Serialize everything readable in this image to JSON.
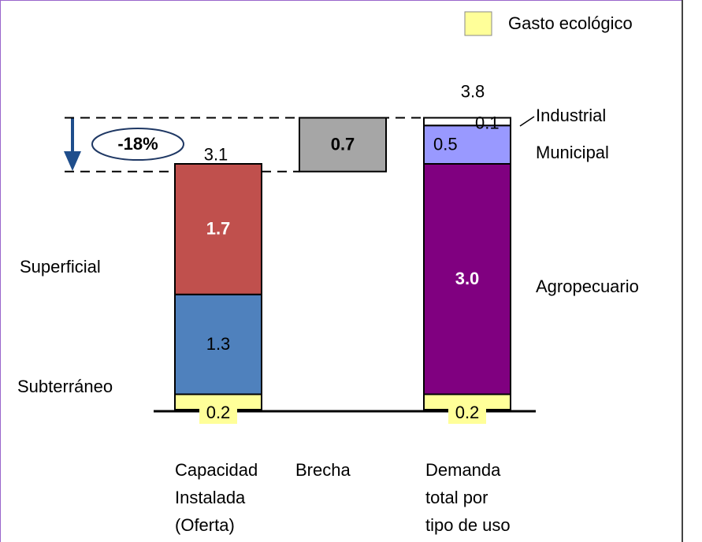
{
  "chart_data": {
    "type": "stacked_bar",
    "categories": [
      "Capacidad\nInstalada\n(Oferta)",
      "Brecha",
      "Demanda\ntotal por\ntipo de uso"
    ],
    "series": [
      {
        "name": "Gasto ecológico",
        "color": "#ffff99",
        "values": [
          0.2,
          null,
          0.2
        ],
        "value_labels": [
          "0.2",
          null,
          "0.2"
        ]
      },
      {
        "name": "Subterráneo",
        "color": "#4f81bd",
        "values": [
          1.3,
          null,
          null
        ],
        "value_labels": [
          "1.3",
          null,
          null
        ]
      },
      {
        "name": "Superficial",
        "color": "#c0504d",
        "values": [
          1.7,
          null,
          null
        ],
        "value_labels": [
          "1.7",
          null,
          null
        ]
      },
      {
        "name": "Agropecuario",
        "color": "#800080",
        "values": [
          null,
          null,
          3.0
        ],
        "value_labels": [
          null,
          null,
          "3.0"
        ]
      },
      {
        "name": "Municipal",
        "color": "#9999ff",
        "values": [
          null,
          null,
          0.5
        ],
        "value_labels": [
          null,
          null,
          "0.5"
        ]
      },
      {
        "name": "Industrial",
        "color": "#ffffff",
        "values": [
          null,
          null,
          0.1
        ],
        "value_labels": [
          null,
          null,
          "0.1"
        ]
      }
    ],
    "totals": [
      3.1,
      null,
      3.8
    ],
    "gap": {
      "value": 0.7,
      "color": "#a6a6a6"
    },
    "annotation": "-18%",
    "legend": {
      "series": 0,
      "position": "upper right"
    }
  }
}
